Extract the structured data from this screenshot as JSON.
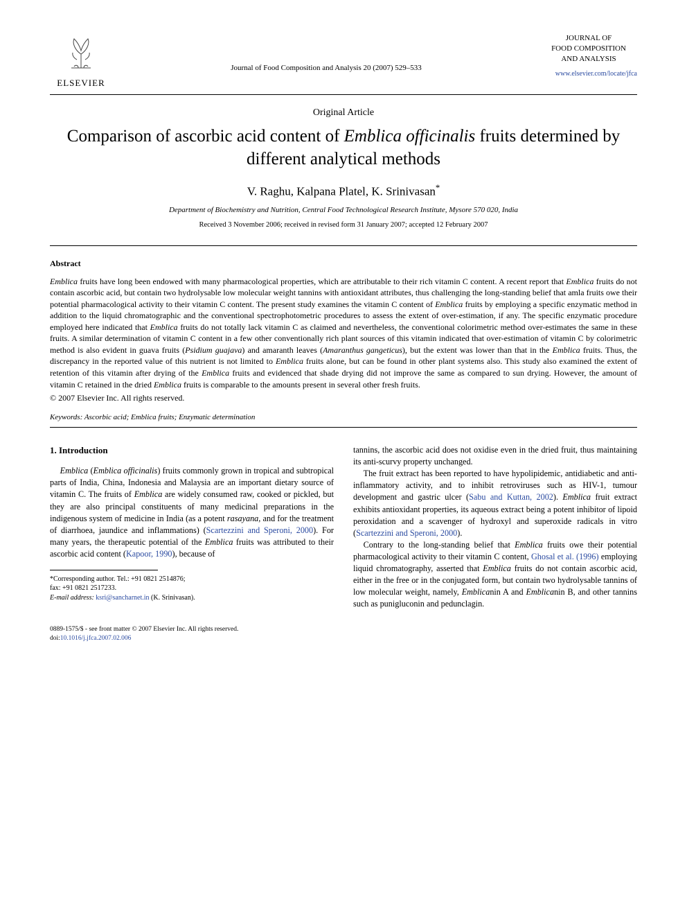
{
  "header": {
    "publisher_name": "ELSEVIER",
    "journal_ref": "Journal of Food Composition and Analysis 20 (2007) 529–533",
    "journal_brand_line1": "JOURNAL OF",
    "journal_brand_line2": "FOOD COMPOSITION",
    "journal_brand_line3": "AND ANALYSIS",
    "journal_link": "www.elsevier.com/locate/jfca"
  },
  "article": {
    "type": "Original Article",
    "title_pre": "Comparison of ascorbic acid content of ",
    "title_ital": "Emblica officinalis",
    "title_post": " fruits determined by different analytical methods",
    "authors": "V. Raghu, Kalpana Platel, K. Srinivasan",
    "corresponding_marker": "*",
    "affiliation": "Department of Biochemistry and Nutrition, Central Food Technological Research Institute, Mysore 570 020, India",
    "dates": "Received 3 November 2006; received in revised form 31 January 2007; accepted 12 February 2007"
  },
  "abstract": {
    "heading": "Abstract",
    "body_parts": [
      {
        "t": "ital",
        "v": "Emblica"
      },
      {
        "t": "n",
        "v": " fruits have long been endowed with many pharmacological properties, which are attributable to their rich vitamin C content. A recent report that "
      },
      {
        "t": "ital",
        "v": "Emblica"
      },
      {
        "t": "n",
        "v": " fruits do not contain ascorbic acid, but contain two hydrolysable low molecular weight tannins with antioxidant attributes, thus challenging the long-standing belief that amla fruits owe their potential pharmacological activity to their vitamin C content. The present study examines the vitamin C content of "
      },
      {
        "t": "ital",
        "v": "Emblica"
      },
      {
        "t": "n",
        "v": " fruits by employing a specific enzymatic method in addition to the liquid chromatographic and the conventional spectrophotometric procedures to assess the extent of over-estimation, if any. The specific enzymatic procedure employed here indicated that "
      },
      {
        "t": "ital",
        "v": "Emblica"
      },
      {
        "t": "n",
        "v": " fruits do not totally lack vitamin C as claimed and nevertheless, the conventional colorimetric method over-estimates the same in these fruits. A similar determination of vitamin C content in a few other conventionally rich plant sources of this vitamin indicated that over-estimation of vitamin C by colorimetric method is also evident in guava fruits ("
      },
      {
        "t": "ital",
        "v": "Psidium guajava"
      },
      {
        "t": "n",
        "v": ") and amaranth leaves ("
      },
      {
        "t": "ital",
        "v": "Amaranthus gangeticus"
      },
      {
        "t": "n",
        "v": "), but the extent was lower than that in the "
      },
      {
        "t": "ital",
        "v": "Emblica"
      },
      {
        "t": "n",
        "v": " fruits. Thus, the discrepancy in the reported value of this nutrient is not limited to "
      },
      {
        "t": "ital",
        "v": "Emblica"
      },
      {
        "t": "n",
        "v": " fruits alone, but can be found in other plant systems also. This study also examined the extent of retention of this vitamin after drying of the "
      },
      {
        "t": "ital",
        "v": "Emblica"
      },
      {
        "t": "n",
        "v": " fruits and evidenced that shade drying did not improve the same as compared to sun drying. However, the amount of vitamin C retained in the dried "
      },
      {
        "t": "ital",
        "v": "Emblica"
      },
      {
        "t": "n",
        "v": " fruits is comparable to the amounts present in several other fresh fruits."
      }
    ],
    "copyright": "© 2007 Elsevier Inc. All rights reserved.",
    "keywords_label": "Keywords:",
    "keywords_text": " Ascorbic acid; Emblica fruits; Enzymatic determination"
  },
  "body": {
    "section_heading": "1. Introduction",
    "col1_paras": [
      [
        {
          "t": "ital",
          "v": "Emblica"
        },
        {
          "t": "n",
          "v": " ("
        },
        {
          "t": "ital",
          "v": "Emblica officinalis"
        },
        {
          "t": "n",
          "v": ") fruits commonly grown in tropical and subtropical parts of India, China, Indonesia and Malaysia are an important dietary source of vitamin C. The fruits of "
        },
        {
          "t": "ital",
          "v": "Emblica"
        },
        {
          "t": "n",
          "v": " are widely consumed raw, cooked or pickled, but they are also principal constituents of many medicinal preparations in the indigenous system of medicine in India (as a potent "
        },
        {
          "t": "ital",
          "v": "rasayana"
        },
        {
          "t": "n",
          "v": ", and for the treatment of diarrhoea, jaundice and inflammations) ("
        },
        {
          "t": "cite",
          "v": "Scartezzini and Speroni, 2000"
        },
        {
          "t": "n",
          "v": "). For many years, the therapeutic potential of the "
        },
        {
          "t": "ital",
          "v": "Emblica"
        },
        {
          "t": "n",
          "v": " fruits was attributed to their ascorbic acid content ("
        },
        {
          "t": "cite",
          "v": "Kapoor, 1990"
        },
        {
          "t": "n",
          "v": "), because of"
        }
      ]
    ],
    "col2_paras": [
      [
        {
          "t": "n",
          "v": "tannins, the ascorbic acid does not oxidise even in the dried fruit, thus maintaining its anti-scurvy property unchanged."
        }
      ],
      [
        {
          "t": "n",
          "v": "The fruit extract has been reported to have hypolipidemic, antidiabetic and anti-inflammatory activity, and to inhibit retroviruses such as HIV-1, tumour development and gastric ulcer ("
        },
        {
          "t": "cite",
          "v": "Sabu and Kuttan, 2002"
        },
        {
          "t": "n",
          "v": "). "
        },
        {
          "t": "ital",
          "v": "Emblica"
        },
        {
          "t": "n",
          "v": " fruit extract exhibits antioxidant properties, its aqueous extract being a potent inhibitor of lipoid peroxidation and a scavenger of hydroxyl and superoxide radicals in vitro ("
        },
        {
          "t": "cite",
          "v": "Scartezzini and Speroni, 2000"
        },
        {
          "t": "n",
          "v": ")."
        }
      ],
      [
        {
          "t": "n",
          "v": "Contrary to the long-standing belief that "
        },
        {
          "t": "ital",
          "v": "Emblica"
        },
        {
          "t": "n",
          "v": " fruits owe their potential pharmacological activity to their vitamin C content, "
        },
        {
          "t": "cite",
          "v": "Ghosal et al. (1996)"
        },
        {
          "t": "n",
          "v": " employing liquid chromatography, asserted that "
        },
        {
          "t": "ital",
          "v": "Emblica"
        },
        {
          "t": "n",
          "v": " fruits do not contain ascorbic acid, either in the free or in the conjugated form, but contain two hydrolysable tannins of low molecular weight, namely, "
        },
        {
          "t": "ital",
          "v": "Emblica"
        },
        {
          "t": "n",
          "v": "nin A and "
        },
        {
          "t": "ital",
          "v": "Emblica"
        },
        {
          "t": "n",
          "v": "nin B, and other tannins such as punigluconin and pedunclagin."
        }
      ]
    ]
  },
  "footnote": {
    "corresponding": "*Corresponding author. Tel.: +91 0821 2514876;",
    "fax": "fax: +91 0821 2517233.",
    "email_label": "E-mail address:",
    "email": " ksri@sancharnet.in ",
    "email_author": "(K. Srinivasan)."
  },
  "footer": {
    "issn": "0889-1575/$ - see front matter © 2007 Elsevier Inc. All rights reserved.",
    "doi_label": "doi:",
    "doi": "10.1016/j.jfca.2007.02.006"
  },
  "colors": {
    "text": "#000000",
    "link": "#2a4aa0",
    "background": "#ffffff"
  },
  "fonts": {
    "title_size_pt": 25,
    "body_size_pt": 12,
    "abstract_size_pt": 12,
    "footnote_size_pt": 10,
    "footer_size_pt": 9.5
  }
}
